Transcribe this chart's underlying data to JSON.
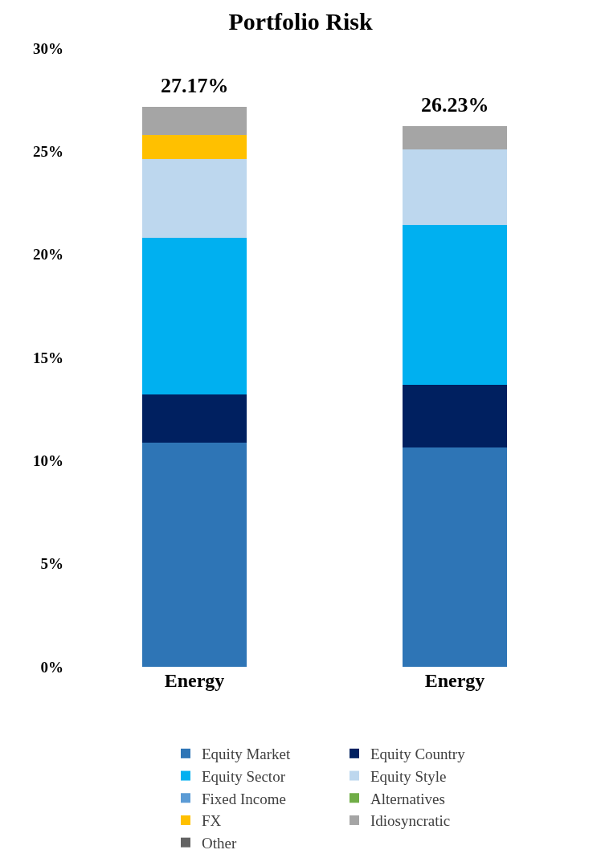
{
  "chart_data": {
    "type": "bar",
    "title": "Portfolio Risk",
    "categories": [
      "Energy",
      "Energy"
    ],
    "stacked": true,
    "series": [
      {
        "name": "Equity Market",
        "color": "#2e75b6",
        "values": [
          10.86,
          10.63
        ]
      },
      {
        "name": "Equity Country",
        "color": "#002060",
        "values": [
          2.35,
          3.04
        ]
      },
      {
        "name": "Equity Sector",
        "color": "#00b0f0",
        "values": [
          7.58,
          7.74
        ]
      },
      {
        "name": "Equity Style",
        "color": "#bdd7ee",
        "values": [
          3.85,
          3.7
        ]
      },
      {
        "name": "Fixed Income",
        "color": "#5b9bd5",
        "values": [
          0,
          0
        ]
      },
      {
        "name": "Alternatives",
        "color": "#70ad47",
        "values": [
          0,
          0
        ]
      },
      {
        "name": "FX",
        "color": "#ffc000",
        "values": [
          1.16,
          0
        ]
      },
      {
        "name": "Idiosyncratic",
        "color": "#a5a5a5",
        "values": [
          1.37,
          1.12
        ]
      },
      {
        "name": "Other",
        "color": "#636363",
        "values": [
          0,
          0
        ]
      }
    ],
    "totals": [
      "27.17%",
      "26.23%"
    ],
    "ylim": [
      0,
      30
    ],
    "yticks": [
      {
        "value": 0,
        "label": "0%"
      },
      {
        "value": 5,
        "label": "5%"
      },
      {
        "value": 10,
        "label": "10%"
      },
      {
        "value": 15,
        "label": "15%"
      },
      {
        "value": 20,
        "label": "20%"
      },
      {
        "value": 25,
        "label": "25%"
      },
      {
        "value": 30,
        "label": "30%"
      }
    ],
    "grid": false,
    "legend": "bottom"
  }
}
